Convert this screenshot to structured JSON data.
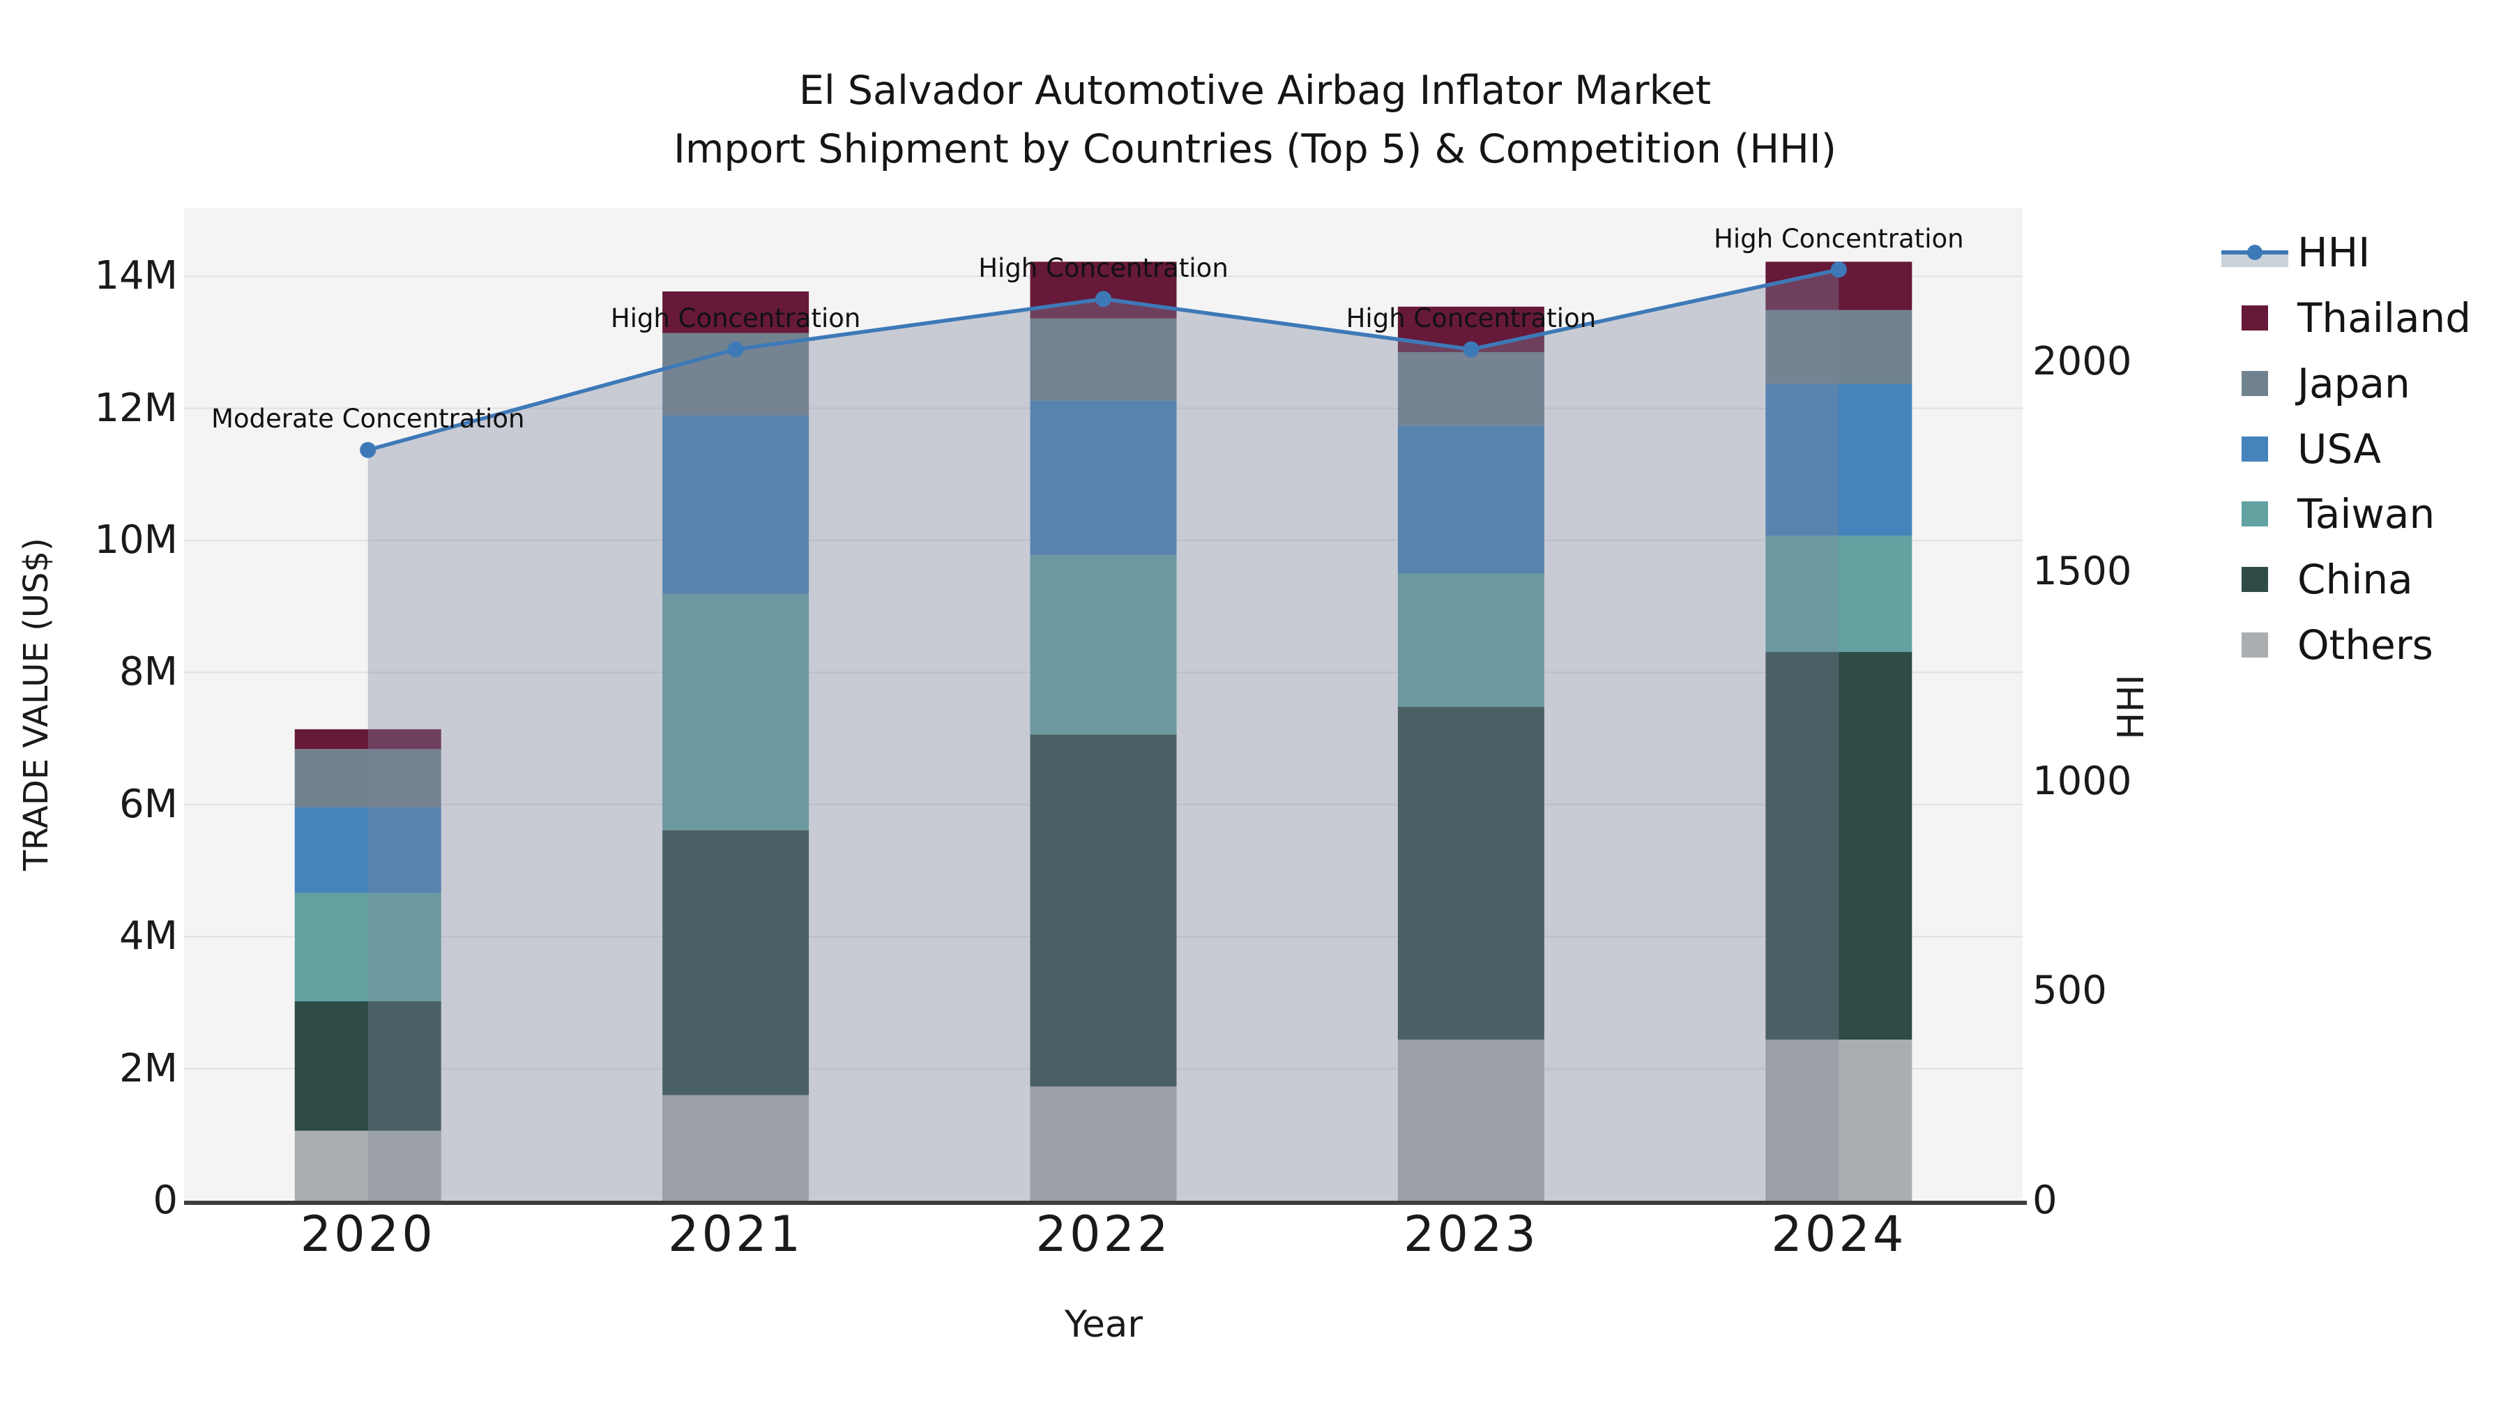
{
  "title": {
    "line1": "El Salvador Automotive Airbag Inflator Market",
    "line2": "Import Shipment by Countries (Top 5) & Competition (HHI)"
  },
  "axes": {
    "x": {
      "label": "Year",
      "tick_labels": [
        "2020",
        "2021",
        "2022",
        "2023",
        "2024"
      ]
    },
    "y_left": {
      "label": "TRADE VALUE (US$)",
      "tick_labels": [
        "0",
        "2M",
        "4M",
        "6M",
        "8M",
        "10M",
        "12M",
        "14M"
      ],
      "tick_values_musd": [
        0,
        2,
        4,
        6,
        8,
        10,
        12,
        14
      ]
    },
    "y_right": {
      "label": "HHI",
      "tick_labels": [
        "0",
        "500",
        "1000",
        "1500",
        "2000"
      ],
      "tick_values": [
        0,
        500,
        1000,
        1500,
        2000
      ]
    }
  },
  "legend": {
    "items": [
      {
        "label": "HHI",
        "type": "line-marker-band",
        "color": "#3e79b7"
      },
      {
        "label": "Thailand",
        "type": "square",
        "color": "#661939"
      },
      {
        "label": "Japan",
        "type": "square",
        "color": "#71828f"
      },
      {
        "label": "USA",
        "type": "square",
        "color": "#4583bb"
      },
      {
        "label": "Taiwan",
        "type": "square",
        "color": "#62a3a2"
      },
      {
        "label": "China",
        "type": "square",
        "color": "#2e4b46"
      },
      {
        "label": "Others",
        "type": "square",
        "color": "#abaeb0"
      }
    ]
  },
  "annotations": [
    {
      "category": "2020",
      "text": "Moderate Concentration"
    },
    {
      "category": "2021",
      "text": "High Concentration"
    },
    {
      "category": "2022",
      "text": "High Concentration"
    },
    {
      "category": "2023",
      "text": "High Concentration"
    },
    {
      "category": "2024",
      "text": "High Concentration"
    }
  ],
  "chart_data": {
    "type": "bar",
    "subtype": "stacked-bars-with-secondary-axis-line",
    "categories": [
      "2020",
      "2021",
      "2022",
      "2023",
      "2024"
    ],
    "bar_value_unit": "million US$",
    "series": [
      {
        "name": "Thailand",
        "color": "#661939",
        "values": [
          0.3,
          0.63,
          0.86,
          0.69,
          0.73
        ]
      },
      {
        "name": "Japan",
        "color": "#71828f",
        "values": [
          0.88,
          1.25,
          1.24,
          1.11,
          1.12
        ]
      },
      {
        "name": "USA",
        "color": "#4583bb",
        "values": [
          1.3,
          2.7,
          2.34,
          2.24,
          2.3
        ]
      },
      {
        "name": "Taiwan",
        "color": "#62a3a2",
        "values": [
          1.64,
          3.58,
          2.72,
          2.02,
          1.76
        ]
      },
      {
        "name": "China",
        "color": "#2e4b46",
        "values": [
          1.96,
          4.01,
          5.33,
          5.04,
          5.87
        ]
      },
      {
        "name": "Others",
        "color": "#abaeb0",
        "values": [
          1.06,
          1.6,
          1.73,
          2.44,
          2.44
        ]
      }
    ],
    "stack_order_bottom_to_top": [
      "Others",
      "China",
      "Taiwan",
      "USA",
      "Japan",
      "Thailand"
    ],
    "stack_totals_musd": [
      7.14,
      13.77,
      14.22,
      13.54,
      14.22
    ],
    "line_series": {
      "name": "HHI",
      "axis": "right",
      "color": "#3e79b7",
      "values": [
        1790,
        2030,
        2150,
        2030,
        2220
      ],
      "area_fill_between_first_and_last_point": {
        "color": "#7d849b",
        "alpha": 0.37
      }
    },
    "title": "El Salvador Automotive Airbag Inflator Market — Import Shipment by Countries (Top 5) & Competition (HHI)",
    "xlabel": "Year",
    "ylabel_left": "TRADE VALUE (US$)",
    "ylabel_right": "HHI",
    "ylim_left_musd": [
      0,
      15.0
    ],
    "ylim_right": [
      0,
      2365
    ],
    "grid": true,
    "legend_position": "outside-right-top",
    "plot_background": "#f4f4f5",
    "grid_color": "#e3e3e7",
    "axis_line_color": "#3d3d3d",
    "bar_colors": {
      "Thailand": "#661939",
      "Japan": "#71828f",
      "USA": "#4583bb",
      "Taiwan": "#62a3a2",
      "China": "#2e4b46",
      "Others": "#abaeb0"
    }
  }
}
